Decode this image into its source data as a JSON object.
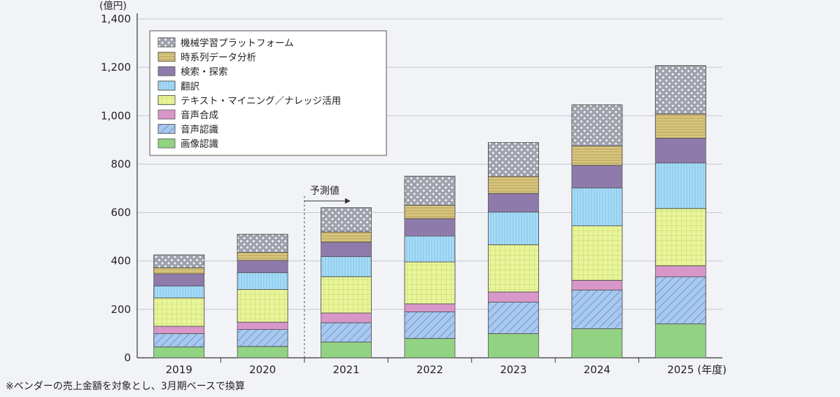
{
  "chart_data": {
    "type": "bar",
    "stacked": true,
    "ylabel": "(億円)",
    "xlabel": "(年度)",
    "ylim": [
      0,
      1400
    ],
    "yticks": [
      0,
      200,
      400,
      600,
      800,
      1000,
      1200,
      1400
    ],
    "ytick_labels": [
      "0",
      "200",
      "400",
      "600",
      "800",
      "1,000",
      "1,200",
      "1,400"
    ],
    "categories": [
      "2019",
      "2020",
      "2021",
      "2022",
      "2023",
      "2024",
      "2025"
    ],
    "forecast_label": "予測値",
    "forecast_from": "2021",
    "grid": true,
    "legend_position": "top-left",
    "series": [
      {
        "name": "画像認識",
        "color": "#92d283",
        "pattern": "solid",
        "values": [
          45,
          47,
          65,
          80,
          100,
          120,
          140
        ]
      },
      {
        "name": "音声認識",
        "color": "#a8c8ee",
        "pattern": "diagonal",
        "values": [
          55,
          70,
          80,
          110,
          130,
          160,
          195
        ]
      },
      {
        "name": "音声合成",
        "color": "#d897c8",
        "pattern": "solid",
        "values": [
          30,
          30,
          40,
          33,
          42,
          40,
          45
        ]
      },
      {
        "name": "テキスト・マイニング／ナレッジ活用",
        "color": "#e8f59a",
        "pattern": "grid",
        "values": [
          117,
          135,
          150,
          173,
          195,
          225,
          237
        ]
      },
      {
        "name": "翻訳",
        "color": "#a9dcf6",
        "pattern": "vertical",
        "values": [
          50,
          70,
          83,
          107,
          135,
          157,
          188
        ]
      },
      {
        "name": "検索・探索",
        "color": "#8e7bab",
        "pattern": "solid",
        "values": [
          50,
          50,
          60,
          72,
          77,
          93,
          102
        ]
      },
      {
        "name": "時系列データ分析",
        "color": "#d9c681",
        "pattern": "horizontal",
        "values": [
          25,
          33,
          42,
          55,
          70,
          80,
          100
        ]
      },
      {
        "name": "機械学習プラットフォーム",
        "color": "#9fa3ad",
        "pattern": "dots",
        "values": [
          53,
          75,
          100,
          120,
          140,
          170,
          200
        ]
      }
    ]
  },
  "footnote": "※ベンダーの売上金額を対象とし、3月期ベースで換算"
}
